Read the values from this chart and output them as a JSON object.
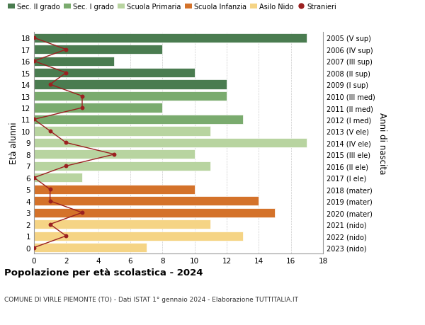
{
  "ages": [
    18,
    17,
    16,
    15,
    14,
    13,
    12,
    11,
    10,
    9,
    8,
    7,
    6,
    5,
    4,
    3,
    2,
    1,
    0
  ],
  "years": [
    "2005 (V sup)",
    "2006 (IV sup)",
    "2007 (III sup)",
    "2008 (II sup)",
    "2009 (I sup)",
    "2010 (III med)",
    "2011 (II med)",
    "2012 (I med)",
    "2013 (V ele)",
    "2014 (IV ele)",
    "2015 (III ele)",
    "2016 (II ele)",
    "2017 (I ele)",
    "2018 (mater)",
    "2019 (mater)",
    "2020 (mater)",
    "2021 (nido)",
    "2022 (nido)",
    "2023 (nido)"
  ],
  "bar_values": [
    17,
    8,
    5,
    10,
    12,
    12,
    8,
    13,
    11,
    17,
    10,
    11,
    3,
    10,
    14,
    15,
    11,
    13,
    7
  ],
  "stranieri": [
    0,
    2,
    0,
    2,
    1,
    3,
    3,
    0,
    1,
    2,
    5,
    2,
    0,
    1,
    1,
    3,
    1,
    2,
    0
  ],
  "colors": {
    "sec2": "#4a7c50",
    "sec1": "#7aab6e",
    "primaria": "#b8d4a0",
    "infanzia": "#d4722a",
    "nido": "#f5d485",
    "stranieri": "#9b2020"
  },
  "school_ranges": {
    "sec2": [
      14,
      18
    ],
    "sec1": [
      11,
      13
    ],
    "primaria": [
      6,
      10
    ],
    "infanzia": [
      3,
      5
    ],
    "nido": [
      0,
      2
    ]
  },
  "title": "Popolazione per età scolastica - 2024",
  "subtitle": "COMUNE DI VIRLE PIEMONTE (TO) - Dati ISTAT 1° gennaio 2024 - Elaborazione TUTTITALIA.IT",
  "ylabel_left": "Età alunni",
  "ylabel_right": "Anni di nascita",
  "xticks": [
    0,
    2,
    4,
    6,
    8,
    10,
    12,
    14,
    16,
    18
  ],
  "legend_labels": [
    "Sec. II grado",
    "Sec. I grado",
    "Scuola Primaria",
    "Scuola Infanzia",
    "Asilo Nido",
    "Stranieri"
  ],
  "background_color": "#ffffff"
}
